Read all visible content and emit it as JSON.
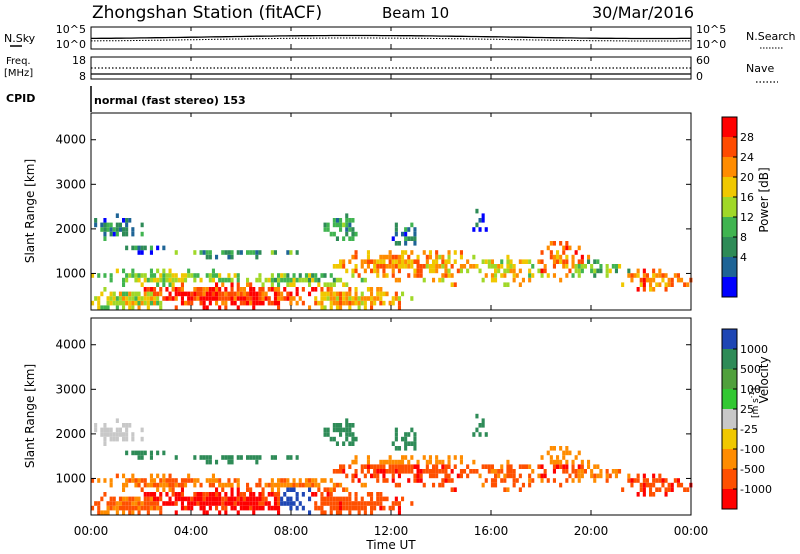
{
  "header": {
    "station": "Zhongshan Station (fitACF)",
    "beam": "Beam 10",
    "date": "30/Mar/2016"
  },
  "nsky_panel": {
    "left_label": "N.Sky",
    "left_ticks": [
      "10^5",
      "10^0"
    ],
    "right_label": "N.Search",
    "right_ticks": [
      "10^5",
      "10^0"
    ]
  },
  "freq_panel": {
    "left_label_1": "Freq.",
    "left_label_2": "[MHz]",
    "left_ticks": [
      "18",
      "8"
    ],
    "right_label": "Nave",
    "right_ticks": [
      "60",
      "0"
    ]
  },
  "cpid": {
    "label": "CPID",
    "text": "normal (fast stereo) 153"
  },
  "chart_data": [
    {
      "type": "heatmap",
      "name": "power",
      "ylabel": "Slant Range [km]",
      "yticks": [
        "4000",
        "3000",
        "2000",
        "1000"
      ],
      "ytick_values": [
        4000,
        3000,
        2000,
        1000
      ],
      "ylim": [
        180,
        4600
      ],
      "xlim_hours": [
        0,
        24
      ],
      "colorbar_label": "Power [dB]",
      "colorbar_ticks": [
        "28",
        "24",
        "20",
        "16",
        "12",
        "8",
        "4"
      ],
      "colorbar_colors": [
        "#ff0000",
        "#ff4b00",
        "#ff8c00",
        "#f0c800",
        "#a0d828",
        "#40b450",
        "#2e8b57",
        "#1e6496",
        "#0000ff"
      ]
    },
    {
      "type": "heatmap",
      "name": "velocity",
      "ylabel": "Slant Range [km]",
      "yticks": [
        "4000",
        "3000",
        "2000",
        "1000"
      ],
      "ytick_values": [
        4000,
        3000,
        2000,
        1000
      ],
      "ylim": [
        180,
        4600
      ],
      "xlim_hours": [
        0,
        24
      ],
      "xlabel": "Time UT",
      "xticks": [
        "00:00",
        "04:00",
        "08:00",
        "12:00",
        "16:00",
        "20:00",
        "00:00"
      ],
      "xtick_hours": [
        0,
        4,
        8,
        12,
        16,
        20,
        24
      ],
      "colorbar_label": "Velocity",
      "colorbar_ticks": [
        "1000",
        "500",
        "100",
        "25",
        "-25",
        "-100",
        "-500",
        "-1000"
      ],
      "colorbar_colors": [
        "#1e46b4",
        "#2e8b57",
        "#50a03c",
        "#32c832",
        "#c8c8c8",
        "#f0c800",
        "#ff8c00",
        "#ff5000",
        "#ff0000"
      ]
    }
  ]
}
